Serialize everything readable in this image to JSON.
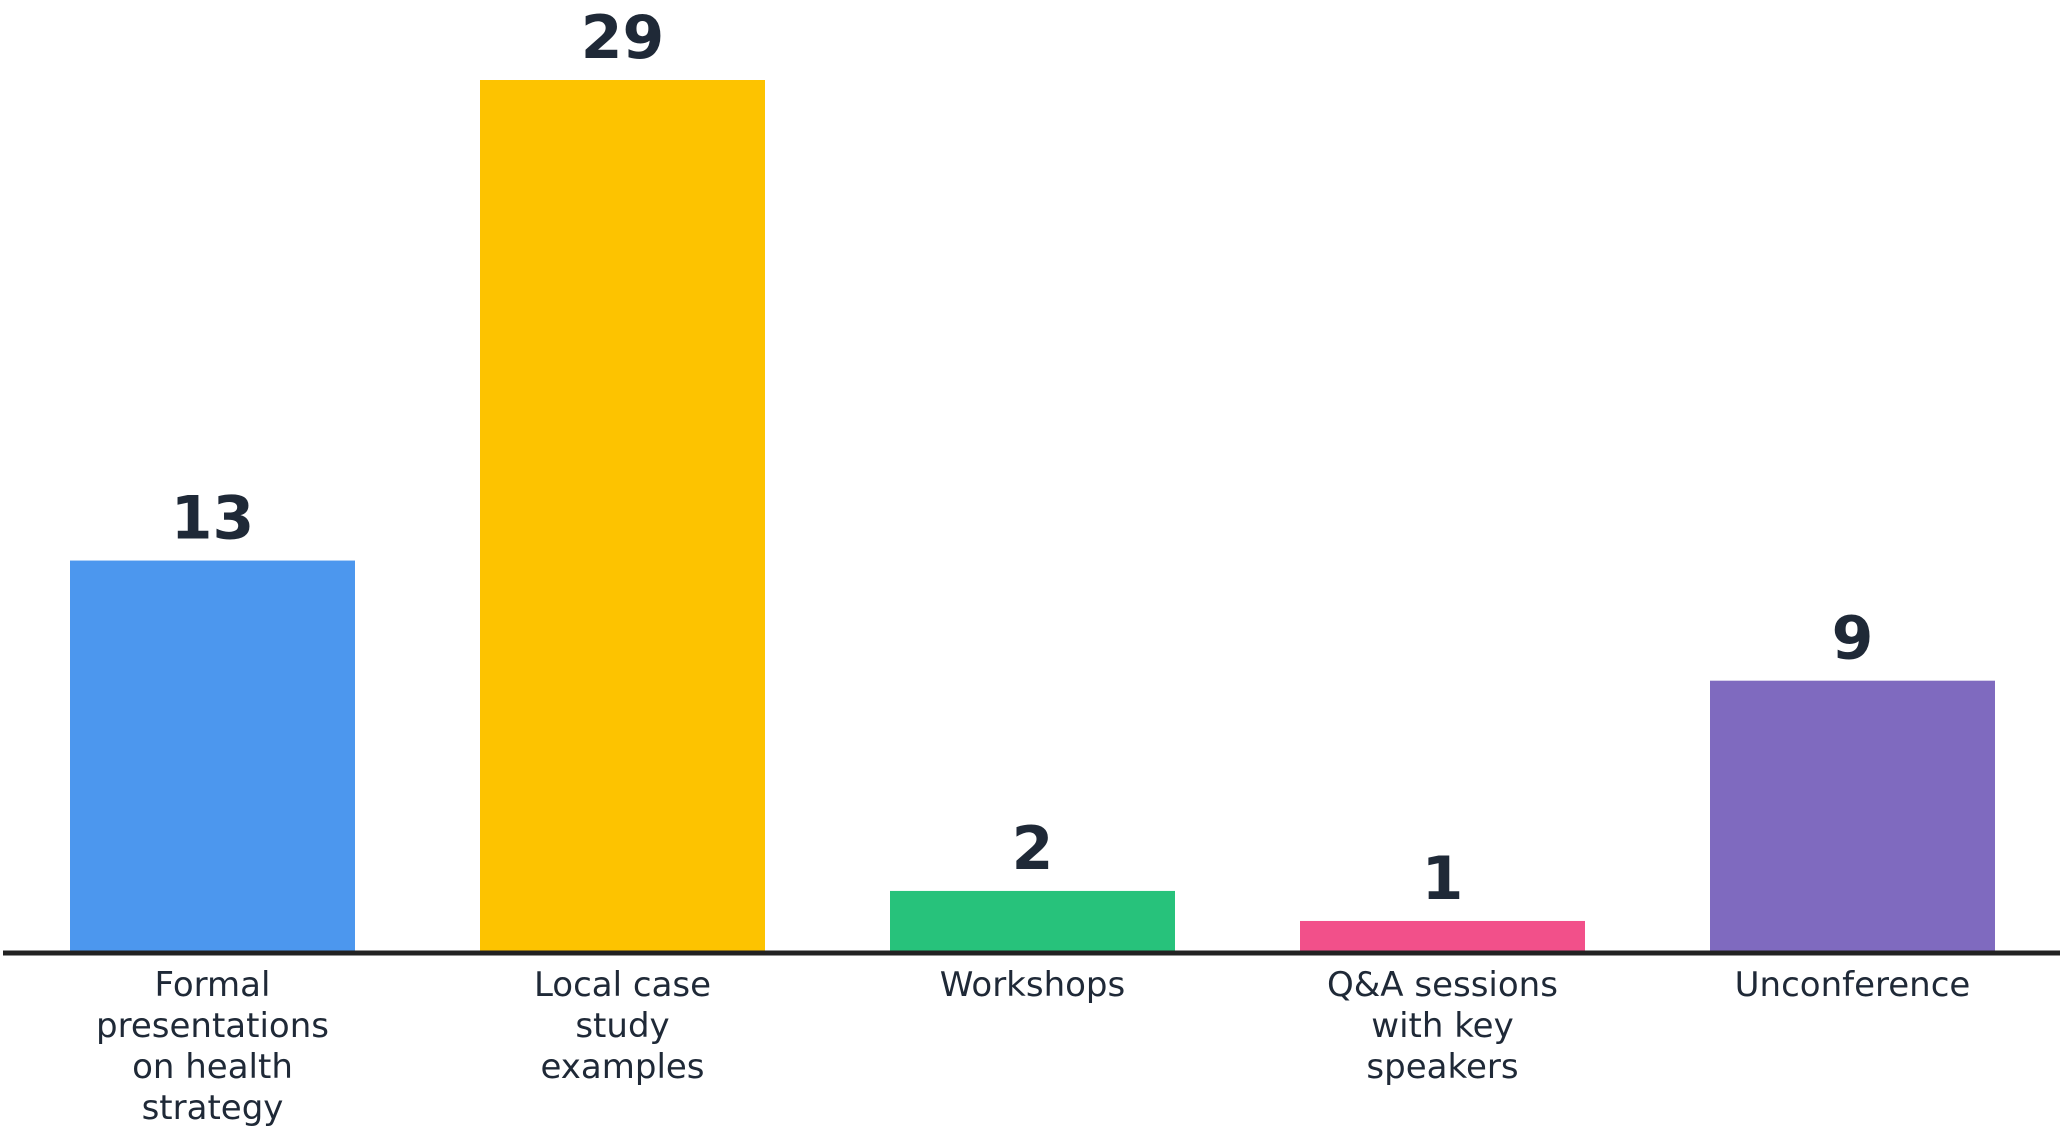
{
  "chart_data": {
    "type": "bar",
    "title": "",
    "xlabel": "",
    "ylabel": "",
    "categories": [
      [
        "Formal",
        "presentations",
        "on health",
        "strategy"
      ],
      [
        "Local case",
        "study",
        "examples"
      ],
      [
        "Workshops"
      ],
      [
        "Q&A sessions",
        "with key",
        "speakers"
      ],
      [
        "Unconference"
      ]
    ],
    "values": [
      13,
      29,
      2,
      1,
      9
    ],
    "colors": [
      "#4c97ee",
      "#fdc300",
      "#27c27b",
      "#f2508a",
      "#7f6abf"
    ],
    "value_labels": [
      "13",
      "29",
      "2",
      "1",
      "9"
    ],
    "ylim": [
      0,
      29
    ],
    "grid": false,
    "legend": "none"
  }
}
